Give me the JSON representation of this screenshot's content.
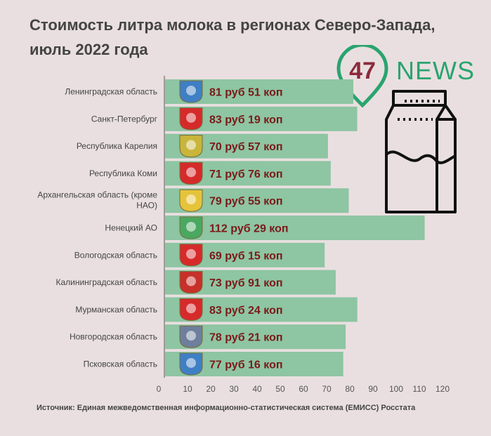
{
  "title": "Стоимость литра молока в регионах Северо-Запада, июль 2022 года",
  "source": "Источник: Единая межведомственная информационно-статистическая система (ЕМИСС) Росстата",
  "logo": {
    "number": "47",
    "word": "NEWS"
  },
  "colors": {
    "bar": "#8ec5a2",
    "value_text": "#7a1a1a",
    "axis": "#555555",
    "label": "#444444",
    "brand": "#2aa46f"
  },
  "chart_data": {
    "type": "bar",
    "orientation": "horizontal",
    "categories": [
      "Ленинградская область",
      "Санкт-Петербург",
      "Республика Карелия",
      "Республика Коми",
      "Архангельская область (кроме НАО)",
      "Ненецкий АО",
      "Вологодская область",
      "Калининградская область",
      "Мурманская область",
      "Новгородская область",
      "Псковская область"
    ],
    "values": [
      81.51,
      83.19,
      70.57,
      71.76,
      79.55,
      112.29,
      69.15,
      73.91,
      83.24,
      78.21,
      77.16
    ],
    "value_labels": [
      "81 руб 51 коп",
      "83 руб 19 коп",
      "70 руб 57 коп",
      "71 руб 76 коп",
      "79 руб 55 коп",
      "112 руб 29 коп",
      "69 руб 15 коп",
      "73 руб 91 коп",
      "83 руб 24 коп",
      "78 руб 21 коп",
      "77 руб 16 коп"
    ],
    "x_ticks": [
      0,
      10,
      20,
      30,
      40,
      50,
      60,
      70,
      80,
      90,
      100,
      110,
      120
    ],
    "xlim": [
      0,
      120
    ],
    "grid": false,
    "crest_icons": [
      "leningrad-oblast-crest-icon",
      "saint-petersburg-crest-icon",
      "karelia-crest-icon",
      "komi-crest-icon",
      "arkhangelsk-crest-icon",
      "nenets-crest-icon",
      "vologda-crest-icon",
      "kaliningrad-crest-icon",
      "murmansk-crest-icon",
      "novgorod-crest-icon",
      "pskov-crest-icon"
    ],
    "crest_colors": [
      "#3f7fc4",
      "#d62a2a",
      "#c8b53a",
      "#d62a2a",
      "#e5c43a",
      "#4aa860",
      "#d62a2a",
      "#c8302a",
      "#d62a2a",
      "#6d7f9c",
      "#3f7fc4"
    ]
  }
}
